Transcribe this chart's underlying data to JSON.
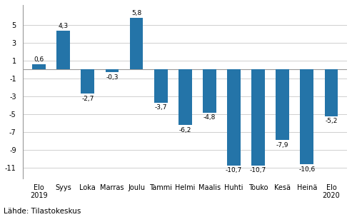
{
  "categories": [
    "Elo\n2019",
    "Syys",
    "Loka",
    "Marras",
    "Joulu",
    "Tammi",
    "Helmi",
    "Maalis",
    "Huhti",
    "Touko",
    "Kesä",
    "Heinä",
    "Elo\n2020"
  ],
  "values": [
    0.6,
    4.3,
    -2.7,
    -0.3,
    5.8,
    -3.7,
    -6.2,
    -4.8,
    -10.7,
    -10.7,
    -7.9,
    -10.6,
    -5.2
  ],
  "bar_color": "#2474A8",
  "ylim": [
    -12.2,
    7.2
  ],
  "yticks": [
    5,
    3,
    1,
    -1,
    -3,
    -5,
    -7,
    -9,
    -11
  ],
  "footer": "Lähde: Tilastokeskus",
  "background_color": "#ffffff",
  "grid_color": "#c8c8c8",
  "label_fontsize": 6.5,
  "tick_fontsize": 7.0,
  "footer_fontsize": 7.5,
  "bar_width": 0.55
}
